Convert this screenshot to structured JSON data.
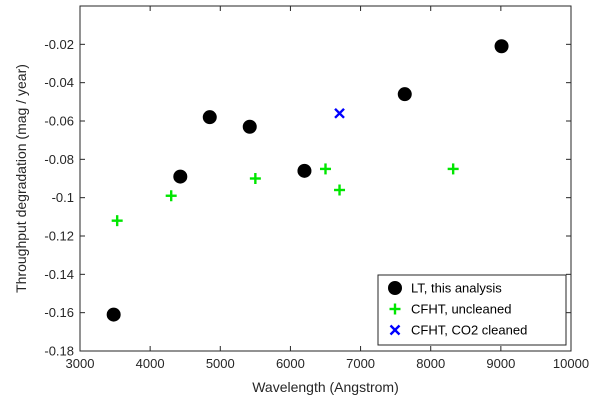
{
  "chart_data": {
    "type": "scatter",
    "title": "",
    "xlabel": "Wavelength (Angstrom)",
    "ylabel": "Throughput degradation (mag / year)",
    "xlim": [
      3000,
      10000
    ],
    "ylim": [
      -0.18,
      0
    ],
    "xticks": [
      3000,
      4000,
      5000,
      6000,
      7000,
      8000,
      9000,
      10000
    ],
    "xtick_labels": [
      "3000",
      "4000",
      "5000",
      "6000",
      "7000",
      "8000",
      "9000",
      "10000"
    ],
    "yticks": [
      -0.18,
      -0.16,
      -0.14,
      -0.12,
      -0.1,
      -0.08,
      -0.06,
      -0.04,
      -0.02
    ],
    "ytick_labels": [
      "-0.18",
      "-0.16",
      "-0.14",
      "-0.12",
      "-0.1",
      "-0.08",
      "-0.06",
      "-0.04",
      "-0.02"
    ],
    "grid": false,
    "legend_position": "bottom-right",
    "series": [
      {
        "name": "LT, this analysis",
        "marker": "filled-circle",
        "color": "#000000",
        "x": [
          3480,
          4430,
          4850,
          5420,
          6200,
          7630,
          9010
        ],
        "y": [
          -0.161,
          -0.089,
          -0.058,
          -0.063,
          -0.086,
          -0.046,
          -0.021
        ]
      },
      {
        "name": "CFHT, uncleaned",
        "marker": "plus",
        "color": "#00e600",
        "x": [
          3530,
          4300,
          5500,
          6500,
          6700,
          8320
        ],
        "y": [
          -0.112,
          -0.099,
          -0.09,
          -0.085,
          -0.096,
          -0.085
        ]
      },
      {
        "name": "CFHT, CO2 cleaned",
        "marker": "cross",
        "color": "#0000ff",
        "x": [
          6700
        ],
        "y": [
          -0.056
        ]
      }
    ]
  }
}
